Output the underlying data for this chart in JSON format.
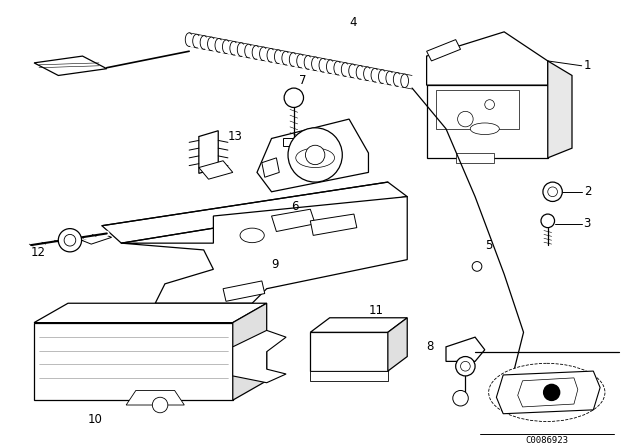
{
  "background_color": "#ffffff",
  "figure_width": 6.4,
  "figure_height": 4.48,
  "dpi": 100,
  "label_fontsize": 8.5,
  "line_color": "#000000",
  "diagram_code": "C0086923"
}
